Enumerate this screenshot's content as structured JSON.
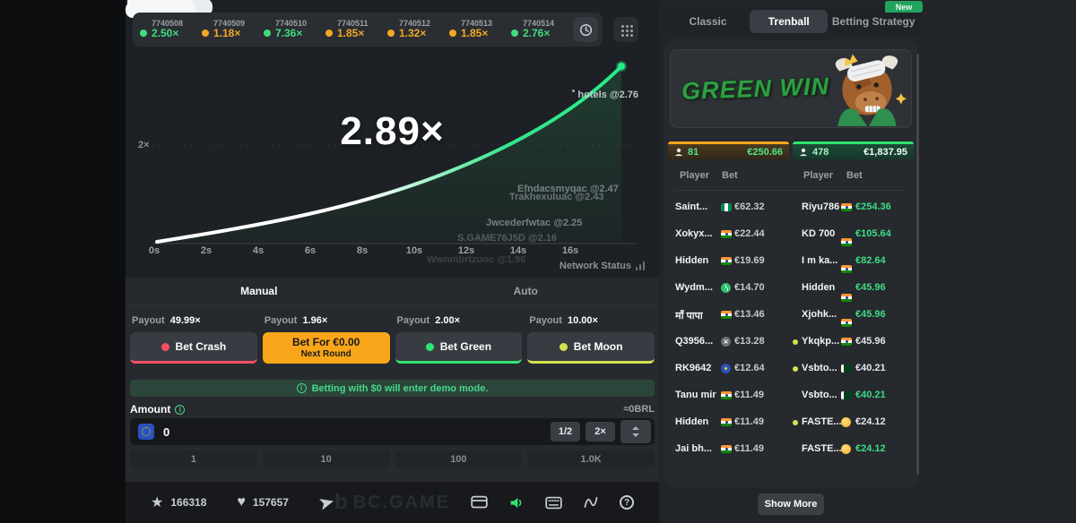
{
  "history": {
    "rounds": [
      {
        "id": "7740508",
        "multiplier": "2.50×",
        "color": "green"
      },
      {
        "id": "7740509",
        "multiplier": "1.18×",
        "color": "orange"
      },
      {
        "id": "7740510",
        "multiplier": "7.36×",
        "color": "green"
      },
      {
        "id": "7740511",
        "multiplier": "1.85×",
        "color": "orange"
      },
      {
        "id": "7740512",
        "multiplier": "1.32×",
        "color": "orange"
      },
      {
        "id": "7740513",
        "multiplier": "1.85×",
        "color": "orange"
      },
      {
        "id": "7740514",
        "multiplier": "2.76×",
        "color": "green"
      }
    ]
  },
  "chart": {
    "current_multiplier": "2.89×",
    "y_axis_label": "2×",
    "x_ticks": [
      "0s",
      "2s",
      "4s",
      "6s",
      "8s",
      "10s",
      "12s",
      "14s",
      "16s"
    ],
    "network_status": "Network Status",
    "cashouts": [
      {
        "text": "hotels @2.76"
      },
      {
        "text": "Efndacsmyqac @2.47"
      },
      {
        "text": "Trakhexuluac @2.43"
      },
      {
        "text": "Jwcederfwtac @2.25"
      },
      {
        "text": "S.GAME76J5D @2.16"
      },
      {
        "text": "Wwnmbrtzuoc @1.96"
      }
    ]
  },
  "bet_panel": {
    "tabs": {
      "manual": "Manual",
      "auto": "Auto"
    },
    "payout_word": "Payout",
    "bets": [
      {
        "payout": "49.99×",
        "label": "Bet Crash",
        "sublabel": "",
        "variant": "crash"
      },
      {
        "payout": "1.96×",
        "label": "Bet For €0.00",
        "sublabel": "Next Round",
        "variant": "bet-active"
      },
      {
        "payout": "2.00×",
        "label": "Bet Green",
        "sublabel": "",
        "variant": "green"
      },
      {
        "payout": "10.00×",
        "label": "Bet Moon",
        "sublabel": "",
        "variant": "moon"
      }
    ],
    "notice": "Betting with $0 will enter demo mode.",
    "amount_label": "Amount",
    "conversion": "≈0BRL",
    "amount_value": "0",
    "half_button": "1/2",
    "double_button": "2×",
    "quick_amounts": [
      "1",
      "10",
      "100",
      "1.0K"
    ]
  },
  "footer": {
    "favorites": "166318",
    "likes": "157657",
    "brand_mark": "b",
    "brand": "BC.GAME",
    "help_glyph": "?"
  },
  "right_panel": {
    "new_badge": "New",
    "tabs": [
      {
        "label": "Classic",
        "active": false
      },
      {
        "label": "Trenball",
        "active": true
      },
      {
        "label": "Betting Strategy",
        "active": false
      }
    ],
    "banner_title": "GREEN WIN",
    "stats": {
      "crash_side": {
        "players": "81",
        "total": "€250.66"
      },
      "green_side": {
        "players": "478",
        "total": "€1,837.95"
      }
    },
    "table": {
      "headers": [
        "Player",
        "Bet",
        "Player",
        "Bet"
      ],
      "rows": [
        {
          "left": {
            "name": "Saint...",
            "flag": "nigeria",
            "amount": "€62.32"
          },
          "right": {
            "name": "Riyu786",
            "flag": "india",
            "amount": "€254.36",
            "win": true,
            "dot": false
          }
        },
        {
          "left": {
            "name": "Xokyx...",
            "flag": "india",
            "amount": "€22.44"
          },
          "right": {
            "name": "KD 700",
            "flag": "india",
            "amount": "€105.64",
            "win": true,
            "dot": false
          }
        },
        {
          "left": {
            "name": "Hidden",
            "flag": "india",
            "amount": "€19.69"
          },
          "right": {
            "name": "I m ka...",
            "flag": "india",
            "amount": "€82.64",
            "win": true,
            "dot": false
          }
        },
        {
          "left": {
            "name": "Wydm...",
            "flag": "clock",
            "amount": "€14.70"
          },
          "right": {
            "name": "Hidden",
            "flag": "india",
            "amount": "€45.96",
            "win": true,
            "dot": false
          }
        },
        {
          "left": {
            "name": "माँ पापा",
            "flag": "india",
            "amount": "€13.46"
          },
          "right": {
            "name": "Xjohk...",
            "flag": "india",
            "amount": "€45.96",
            "win": true,
            "dot": false
          }
        },
        {
          "left": {
            "name": "Q3956...",
            "flag": "unknown",
            "amount": "€13.28"
          },
          "right": {
            "name": "Ykqkp...",
            "flag": "india",
            "amount": "€45.96",
            "win": false,
            "dot": true
          }
        },
        {
          "left": {
            "name": "RK9642",
            "flag": "eu",
            "amount": "€12.64"
          },
          "right": {
            "name": "Vsbto...",
            "flag": "pakistan",
            "amount": "€40.21",
            "win": false,
            "dot": true
          }
        },
        {
          "left": {
            "name": "Tanu mir",
            "flag": "india",
            "amount": "€11.49"
          },
          "right": {
            "name": "Vsbto...",
            "flag": "pakistan",
            "amount": "€40.21",
            "win": true,
            "dot": false
          }
        },
        {
          "left": {
            "name": "Hidden",
            "flag": "india",
            "amount": "€11.49"
          },
          "right": {
            "name": "FASTE...",
            "flag": "coin",
            "amount": "€24.12",
            "win": false,
            "dot": true
          }
        },
        {
          "left": {
            "name": "Jai bh...",
            "flag": "india",
            "amount": "€11.49"
          },
          "right": {
            "name": "FASTE...",
            "flag": "coin",
            "amount": "€24.12",
            "win": true,
            "dot": false
          }
        }
      ]
    },
    "show_more": "Show More"
  }
}
